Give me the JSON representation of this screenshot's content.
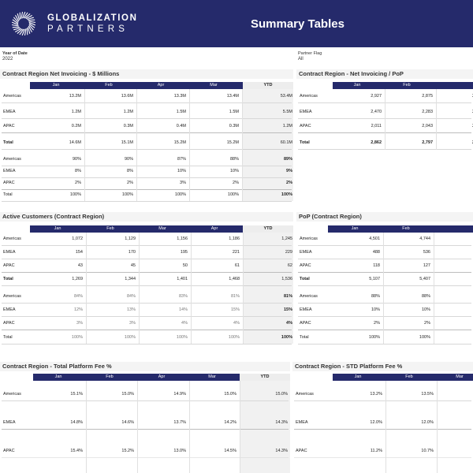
{
  "header": {
    "logo_line1": "GLOBALIZATION",
    "logo_line2": "PARTNERS",
    "title": "Summary Tables",
    "bg_color": "#252a6b"
  },
  "filters": {
    "year_label": "Year of Date",
    "year_value": "2022",
    "partner_label": "Partner Flag",
    "partner_value": "All"
  },
  "sections": {
    "net_invoicing": {
      "title": "Contract Region Net Invoicing - $ Millions",
      "headers": [
        "Jan",
        "Feb",
        "Apr",
        "Mar",
        "YTD"
      ],
      "rows": [
        {
          "label": "Americas",
          "values": [
            "13.2M",
            "13.6M",
            "13.3M",
            "13.4M",
            "53.4M"
          ]
        },
        {
          "label": "EMEA",
          "values": [
            "1.2M",
            "1.2M",
            "1.5M",
            "1.5M",
            "5.5M"
          ]
        },
        {
          "label": "APAC",
          "values": [
            "0.2M",
            "0.3M",
            "0.4M",
            "0.3M",
            "1.2M"
          ]
        },
        {
          "label": "Total",
          "values": [
            "14.6M",
            "15.1M",
            "15.2M",
            "15.2M",
            "60.1M"
          ]
        }
      ],
      "pct_rows": [
        {
          "label": "Americas",
          "values": [
            "90%",
            "90%",
            "87%",
            "88%",
            "89%"
          ]
        },
        {
          "label": "EMEA",
          "values": [
            "8%",
            "8%",
            "10%",
            "10%",
            "9%"
          ]
        },
        {
          "label": "APAC",
          "values": [
            "2%",
            "2%",
            "3%",
            "2%",
            "2%"
          ]
        },
        {
          "label": "Total",
          "values": [
            "100%",
            "100%",
            "100%",
            "100%",
            "100%"
          ]
        }
      ]
    },
    "net_invoicing_pop": {
      "title": "Contract Region - Net Invoicing / PoP",
      "headers": [
        "Jan",
        "Feb",
        ""
      ],
      "rows": [
        {
          "label": "Americas",
          "values": [
            "2,927",
            "2,875",
            "2"
          ]
        },
        {
          "label": "EMEA",
          "values": [
            "2,470",
            "2,283",
            "2"
          ]
        },
        {
          "label": "APAC",
          "values": [
            "2,011",
            "2,043",
            "2"
          ]
        },
        {
          "label": "Total",
          "values": [
            "2,862",
            "2,797",
            "2"
          ]
        }
      ]
    },
    "active_customers": {
      "title": "Active Customers (Contract Region)",
      "headers": [
        "Jan",
        "Feb",
        "Mar",
        "Apr",
        "YTD"
      ],
      "rows": [
        {
          "label": "Americas",
          "values": [
            "1,072",
            "1,129",
            "1,156",
            "1,186",
            "1,245"
          ]
        },
        {
          "label": "EMEA",
          "values": [
            "154",
            "170",
            "195",
            "221",
            "229"
          ]
        },
        {
          "label": "APAC",
          "values": [
            "43",
            "45",
            "50",
            "61",
            "62"
          ]
        },
        {
          "label": "Total",
          "values": [
            "1,269",
            "1,344",
            "1,401",
            "1,468",
            "1,536"
          ]
        }
      ],
      "pct_rows": [
        {
          "label": "Americas",
          "values": [
            "84%",
            "84%",
            "83%",
            "81%",
            "81%"
          ]
        },
        {
          "label": "EMEA",
          "values": [
            "12%",
            "13%",
            "14%",
            "15%",
            "15%"
          ]
        },
        {
          "label": "APAC",
          "values": [
            "3%",
            "3%",
            "4%",
            "4%",
            "4%"
          ]
        },
        {
          "label": "Total",
          "values": [
            "100%",
            "100%",
            "100%",
            "100%",
            "100%"
          ]
        }
      ]
    },
    "pop": {
      "title": "PoP (Contract Region)",
      "headers": [
        "Jan",
        "Feb",
        ""
      ],
      "rows": [
        {
          "label": "Americas",
          "values": [
            "4,501",
            "4,744",
            "4"
          ]
        },
        {
          "label": "EMEA",
          "values": [
            "488",
            "536",
            ""
          ]
        },
        {
          "label": "APAC",
          "values": [
            "118",
            "127",
            ""
          ]
        },
        {
          "label": "Total",
          "values": [
            "5,107",
            "5,407",
            "5"
          ]
        }
      ],
      "pct_rows": [
        {
          "label": "Americas",
          "values": [
            "88%",
            "88%",
            ""
          ]
        },
        {
          "label": "EMEA",
          "values": [
            "10%",
            "10%",
            ""
          ]
        },
        {
          "label": "APAC",
          "values": [
            "2%",
            "2%",
            ""
          ]
        },
        {
          "label": "Total",
          "values": [
            "100%",
            "100%",
            "1"
          ]
        }
      ]
    },
    "platform_fee": {
      "title": "Contract Region - Total Platform Fee %",
      "headers": [
        "Jan",
        "Feb",
        "Apr",
        "Mar",
        "YTD"
      ],
      "rows": [
        {
          "label": "Americas",
          "values": [
            "15.1%",
            "15.0%",
            "14.9%",
            "15.0%",
            "15.0%"
          ]
        },
        {
          "label": "EMEA",
          "values": [
            "14.8%",
            "14.6%",
            "13.7%",
            "14.2%",
            "14.3%"
          ]
        },
        {
          "label": "APAC",
          "values": [
            "15.4%",
            "15.2%",
            "13.0%",
            "14.5%",
            "14.3%"
          ]
        }
      ]
    },
    "std_platform_fee": {
      "title": "Contract Region - STD Platform Fee %",
      "headers": [
        "Jan",
        "Feb",
        "Mar"
      ],
      "rows": [
        {
          "label": "Americas",
          "values": [
            "13.2%",
            "13.5%",
            ""
          ]
        },
        {
          "label": "EMEA",
          "values": [
            "12.0%",
            "12.0%",
            ""
          ]
        },
        {
          "label": "APAC",
          "values": [
            "11.2%",
            "10.7%",
            ""
          ]
        }
      ]
    }
  }
}
